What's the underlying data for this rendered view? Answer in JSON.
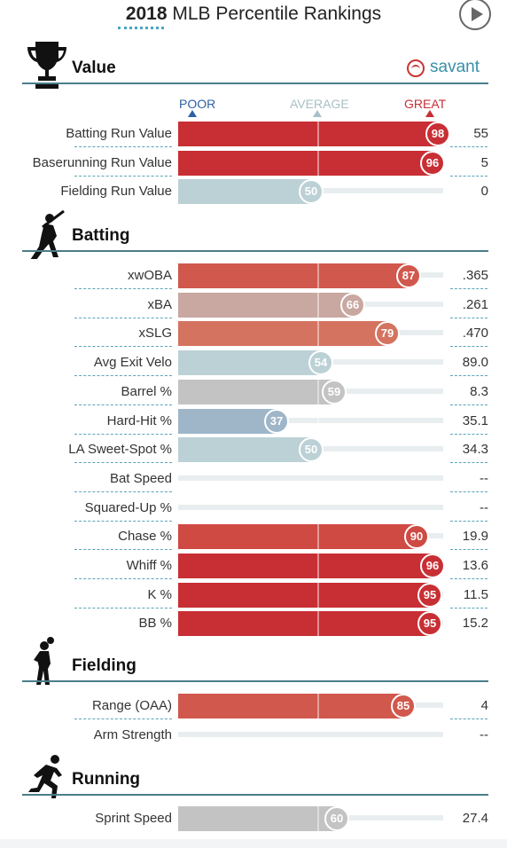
{
  "header": {
    "title_year": "2018",
    "title_rest": " MLB Percentile Rankings"
  },
  "savant_label": "savant",
  "scale": {
    "poor": "POOR",
    "average": "AVERAGE",
    "great": "GREAT"
  },
  "sections": [
    {
      "title": "Value",
      "icon": "trophy-icon",
      "rows": [
        {
          "label": "Batting Run Value",
          "pct": 98,
          "value": "55",
          "color": "#c82f34"
        },
        {
          "label": "Baserunning Run Value",
          "pct": 96,
          "value": "5",
          "color": "#c82f34"
        },
        {
          "label": "Fielding Run Value",
          "pct": 50,
          "value": "0",
          "color": "#bcd1d6"
        }
      ]
    },
    {
      "title": "Batting",
      "icon": "batter-icon",
      "rows": [
        {
          "label": "xwOBA",
          "pct": 87,
          "value": ".365",
          "color": "#d1584d"
        },
        {
          "label": "xBA",
          "pct": 66,
          "value": ".261",
          "color": "#c8a8a0"
        },
        {
          "label": "xSLG",
          "pct": 79,
          "value": ".470",
          "color": "#d4735f"
        },
        {
          "label": "Avg Exit Velo",
          "pct": 54,
          "value": "89.0",
          "color": "#bcd1d6"
        },
        {
          "label": "Barrel %",
          "pct": 59,
          "value": "8.3",
          "color": "#c3c3c3"
        },
        {
          "label": "Hard-Hit %",
          "pct": 37,
          "value": "35.1",
          "color": "#9fb6c9"
        },
        {
          "label": "LA Sweet-Spot %",
          "pct": 50,
          "value": "34.3",
          "color": "#bcd1d6"
        },
        {
          "label": "Bat Speed",
          "pct": null,
          "value": "--",
          "color": ""
        },
        {
          "label": "Squared-Up %",
          "pct": null,
          "value": "--",
          "color": ""
        },
        {
          "label": "Chase %",
          "pct": 90,
          "value": "19.9",
          "color": "#cf4a42"
        },
        {
          "label": "Whiff %",
          "pct": 96,
          "value": "13.6",
          "color": "#c82f34"
        },
        {
          "label": "K %",
          "pct": 95,
          "value": "11.5",
          "color": "#c82f34"
        },
        {
          "label": "BB %",
          "pct": 95,
          "value": "15.2",
          "color": "#c82f34"
        }
      ]
    },
    {
      "title": "Fielding",
      "icon": "fielder-icon",
      "rows": [
        {
          "label": "Range (OAA)",
          "pct": 85,
          "value": "4",
          "color": "#d1584d"
        },
        {
          "label": "Arm Strength",
          "pct": null,
          "value": "--",
          "color": ""
        }
      ]
    },
    {
      "title": "Running",
      "icon": "runner-icon",
      "rows": [
        {
          "label": "Sprint Speed",
          "pct": 60,
          "value": "27.4",
          "color": "#c3c3c3"
        }
      ]
    }
  ]
}
